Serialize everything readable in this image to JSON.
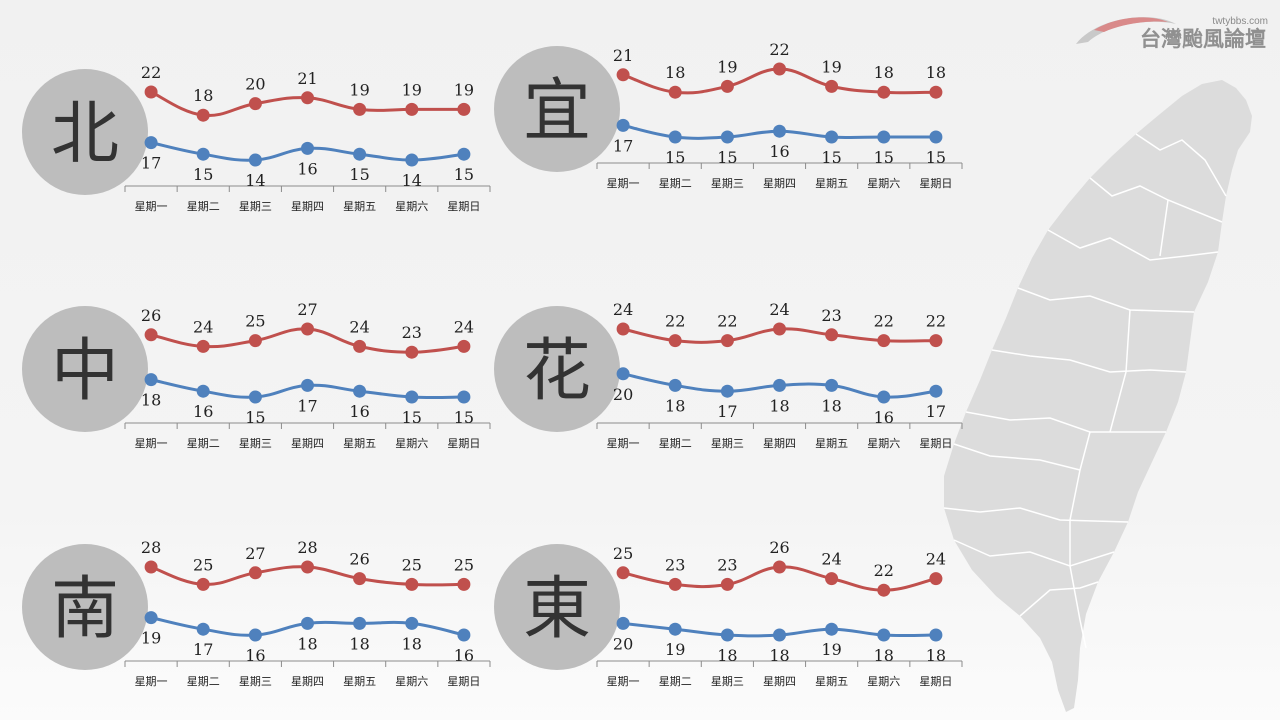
{
  "logo": {
    "url": "twtybbs.com",
    "name": "台灣颱風論壇"
  },
  "colors": {
    "high": "#C0504D",
    "low": "#4F81BD",
    "circle": "#BDBDBD",
    "map": "#DCDCDC",
    "map_border": "#FFFFFF",
    "axis": "#8C8C8C"
  },
  "chart_data": [
    {
      "type": "line",
      "region": "北",
      "categories": [
        "星期一",
        "星期二",
        "星期三",
        "星期四",
        "星期五",
        "星期六",
        "星期日"
      ],
      "series": [
        {
          "values": [
            22,
            18,
            20,
            21,
            19,
            19,
            19
          ]
        },
        {
          "values": [
            17,
            15,
            14,
            16,
            15,
            14,
            15
          ]
        }
      ]
    },
    {
      "type": "line",
      "region": "宜",
      "categories": [
        "星期一",
        "星期二",
        "星期三",
        "星期四",
        "星期五",
        "星期六",
        "星期日"
      ],
      "series": [
        {
          "values": [
            21,
            18,
            19,
            22,
            19,
            18,
            18
          ]
        },
        {
          "values": [
            17,
            15,
            15,
            16,
            15,
            15,
            15
          ]
        }
      ]
    },
    {
      "type": "line",
      "region": "中",
      "categories": [
        "星期一",
        "星期二",
        "星期三",
        "星期四",
        "星期五",
        "星期六",
        "星期日"
      ],
      "series": [
        {
          "values": [
            26,
            24,
            25,
            27,
            24,
            23,
            24
          ]
        },
        {
          "values": [
            18,
            16,
            15,
            17,
            16,
            15,
            15
          ]
        }
      ]
    },
    {
      "type": "line",
      "region": "花",
      "categories": [
        "星期一",
        "星期二",
        "星期三",
        "星期四",
        "星期五",
        "星期六",
        "星期日"
      ],
      "series": [
        {
          "values": [
            24,
            22,
            22,
            24,
            23,
            22,
            22
          ]
        },
        {
          "values": [
            20,
            18,
            17,
            18,
            18,
            16,
            17
          ]
        }
      ]
    },
    {
      "type": "line",
      "region": "南",
      "categories": [
        "星期一",
        "星期二",
        "星期三",
        "星期四",
        "星期五",
        "星期六",
        "星期日"
      ],
      "series": [
        {
          "values": [
            28,
            25,
            27,
            28,
            26,
            25,
            25
          ]
        },
        {
          "values": [
            19,
            17,
            16,
            18,
            18,
            18,
            16
          ]
        }
      ]
    },
    {
      "type": "line",
      "region": "東",
      "categories": [
        "星期一",
        "星期二",
        "星期三",
        "星期四",
        "星期五",
        "星期六",
        "星期日"
      ],
      "series": [
        {
          "values": [
            25,
            23,
            23,
            26,
            24,
            22,
            24
          ]
        },
        {
          "values": [
            20,
            19,
            18,
            18,
            19,
            18,
            18
          ]
        }
      ]
    }
  ]
}
